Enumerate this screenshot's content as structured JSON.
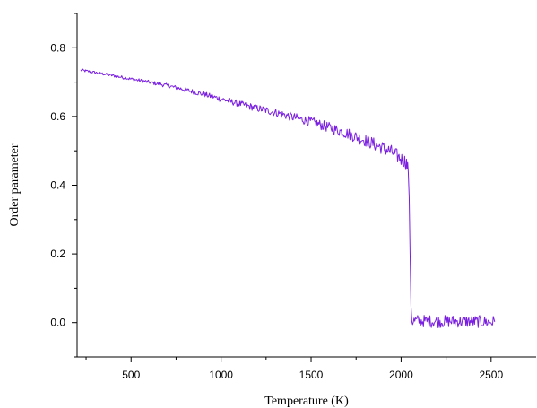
{
  "chart_data": {
    "type": "line",
    "title": "",
    "xlabel": "Temperature (K)",
    "ylabel": "Order parameter",
    "xlim": [
      200,
      2750
    ],
    "ylim": [
      -0.1,
      0.9
    ],
    "xticks": [
      500,
      1000,
      1500,
      2000,
      2500
    ],
    "yticks": [
      0.0,
      0.2,
      0.4,
      0.6,
      0.8
    ],
    "xtick_labels": [
      "500",
      "1000",
      "1500",
      "2000",
      "2500"
    ],
    "ytick_labels": [
      "0.0",
      "0.2",
      "0.4",
      "0.6",
      "0.8"
    ],
    "grid": false,
    "line_color": "#7a1fe0",
    "series": [
      {
        "x": [
          220,
          300,
          400,
          500,
          600,
          700,
          800,
          900,
          1000,
          1100,
          1200,
          1300,
          1400,
          1500,
          1600,
          1700,
          1800,
          1900,
          1950,
          2000,
          2020,
          2030,
          2040,
          2045,
          2050,
          2055,
          2060,
          2100,
          2200,
          2300,
          2400,
          2500,
          2520
        ],
        "y": [
          0.735,
          0.728,
          0.719,
          0.709,
          0.7,
          0.69,
          0.678,
          0.665,
          0.651,
          0.637,
          0.624,
          0.612,
          0.598,
          0.585,
          0.568,
          0.551,
          0.531,
          0.508,
          0.496,
          0.476,
          0.47,
          0.465,
          0.44,
          0.36,
          0.2,
          0.05,
          0.005,
          0.005,
          0.003,
          0.004,
          0.003,
          0.002,
          0.002
        ]
      }
    ]
  }
}
